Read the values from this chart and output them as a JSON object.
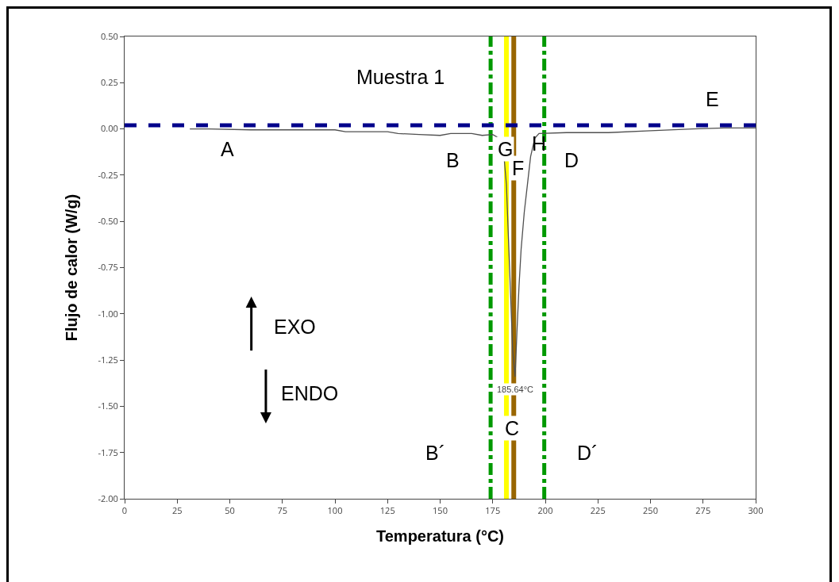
{
  "chart_data": {
    "type": "line",
    "xlabel": "Temperatura (°C)",
    "ylabel": "Flujo de calor (W/g)",
    "x": [
      31,
      40,
      60,
      80,
      100,
      105,
      125,
      130,
      140,
      150,
      155,
      165,
      170,
      175,
      178,
      180,
      181.5,
      182.5,
      183.5,
      184.5,
      185.64,
      186.5,
      187.5,
      188.5,
      190,
      191.5,
      193,
      195,
      197,
      210,
      230,
      250,
      270,
      285,
      300
    ],
    "series": [
      {
        "color": "#505050",
        "values": [
          0,
          0,
          -0.005,
          -0.005,
          -0.005,
          -0.015,
          -0.015,
          -0.025,
          -0.03,
          -0.035,
          -0.025,
          -0.025,
          -0.035,
          -0.03,
          -0.05,
          -0.1,
          -0.3,
          -0.6,
          -0.9,
          -1.2,
          -1.34,
          -1.1,
          -0.85,
          -0.65,
          -0.45,
          -0.3,
          -0.15,
          -0.05,
          -0.025,
          -0.02,
          -0.02,
          -0.01,
          0,
          0.005,
          0.005
        ]
      }
    ],
    "xlim": [
      0,
      300
    ],
    "xticks": [
      0,
      25,
      50,
      75,
      100,
      125,
      150,
      175,
      200,
      225,
      250,
      275,
      300
    ],
    "ylim": [
      -2,
      0.5
    ],
    "yticks": [
      {
        "value": 0.5,
        "label": "0.50"
      },
      {
        "value": 0.25,
        "label": "0.25"
      },
      {
        "value": 0,
        "label": "0.00"
      },
      {
        "value": -0.25,
        "label": "-0.25"
      },
      {
        "value": -0.5,
        "label": "-0.50"
      },
      {
        "value": -0.75,
        "label": "-0.75"
      },
      {
        "value": -1,
        "label": "-1.00"
      },
      {
        "value": -1.25,
        "label": "-1.25"
      },
      {
        "value": -1.5,
        "label": "-1.50"
      },
      {
        "value": -1.75,
        "label": "-1.75"
      },
      {
        "value": -2,
        "label": "-2.00"
      }
    ],
    "grid": false,
    "marker": "none",
    "line_style": "solid",
    "ref_lines": [
      {
        "axis": "y",
        "value": 0.02,
        "color": "#00008b",
        "line_style": "dashed"
      },
      {
        "axis": "x",
        "value": 174,
        "color": "#009900",
        "line_style": "dashdot"
      },
      {
        "axis": "x",
        "value": 199.5,
        "color": "#009900",
        "line_style": "dashdot"
      },
      {
        "axis": "x",
        "value": 181.5,
        "color": "#ffff00",
        "line_style": "solid"
      },
      {
        "axis": "x",
        "value": 185,
        "color": "#996600",
        "line_style": "solid"
      }
    ],
    "annotations": [
      "Muestra 1",
      "A",
      "B",
      {
        "text": "G",
        "x": 181,
        "y": -0.11
      },
      "H",
      {
        "text": "F",
        "x": 187,
        "y": -0.21
      },
      "D",
      "E",
      "EXO",
      "ENDO",
      {
        "text": "C",
        "x": 184,
        "y": -1.62
      },
      "B´",
      "D´",
      {
        "text": "185.64°C",
        "x": 185.64,
        "y": -1.41
      }
    ]
  }
}
